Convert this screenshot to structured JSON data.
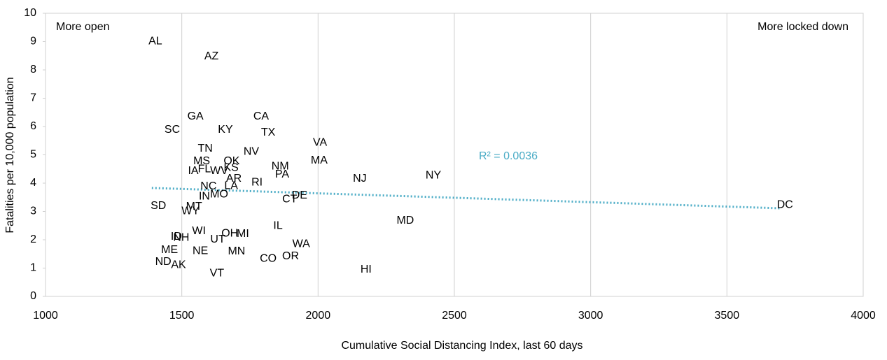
{
  "chart_data": {
    "type": "scatter",
    "x_label": "Cumulative Social Distancing Index, last 60 days",
    "y_label": "Fatalities per 10,000 population",
    "annotations": [
      "More open",
      "More locked down"
    ],
    "labels": [
      "AL",
      "AZ",
      "GA",
      "CA",
      "SC",
      "KY",
      "TX",
      "VA",
      "TN",
      "NV",
      "MS",
      "OK",
      "MA",
      "IA",
      "FL",
      "WV",
      "KS",
      "NM",
      "PA",
      "NY",
      "NJ",
      "AR",
      "RI",
      "NC",
      "LA",
      "IN",
      "MO",
      "DE",
      "CT",
      "SD",
      "MT",
      "WY",
      "DC",
      "MD",
      "IL",
      "WI",
      "OH",
      "MI",
      "ID",
      "NH",
      "UT",
      "WA",
      "ME",
      "NE",
      "MN",
      "OR",
      "CO",
      "ND",
      "AK",
      "HI",
      "VT"
    ],
    "x": [
      1403,
      1609,
      1550,
      1791,
      1465,
      1660,
      1817,
      2007,
      1586,
      1755,
      1573,
      1683,
      2004,
      1542,
      1583,
      1637,
      1681,
      1861,
      1868,
      2423,
      2153,
      1691,
      1776,
      1598,
      1681,
      1583,
      1637,
      1932,
      1896,
      1414,
      1545,
      1532,
      3713,
      2320,
      1853,
      1563,
      1676,
      1724,
      1480,
      1498,
      1632,
      1938,
      1455,
      1568,
      1701,
      1899,
      1817,
      1432,
      1488,
      2176,
      1629
    ],
    "values": [
      9.0,
      8.47,
      6.35,
      6.35,
      5.88,
      5.88,
      5.78,
      5.43,
      5.21,
      5.11,
      4.77,
      4.77,
      4.79,
      4.42,
      4.49,
      4.42,
      4.54,
      4.59,
      4.3,
      4.27,
      4.15,
      4.15,
      4.02,
      3.88,
      3.9,
      3.53,
      3.6,
      3.56,
      3.43,
      3.19,
      3.16,
      3.01,
      3.23,
      2.67,
      2.49,
      2.3,
      2.22,
      2.2,
      2.1,
      2.07,
      2.0,
      1.85,
      1.63,
      1.6,
      1.58,
      1.41,
      1.33,
      1.21,
      1.11,
      0.94,
      0.81
    ],
    "color": "#000000",
    "trendline": {
      "x": [
        1390,
        3700
      ],
      "y": [
        3.83,
        3.11
      ],
      "color": "#4bacc6",
      "label": "R² = 0.0036"
    },
    "xlim": [
      1000,
      4000
    ],
    "xticks": [
      1000,
      1500,
      2000,
      2500,
      3000,
      3500,
      4000
    ],
    "ylim": [
      0,
      10
    ],
    "yticks": [
      0,
      1,
      2,
      3,
      4,
      5,
      6,
      7,
      8,
      9,
      10
    ],
    "grid": "x"
  }
}
